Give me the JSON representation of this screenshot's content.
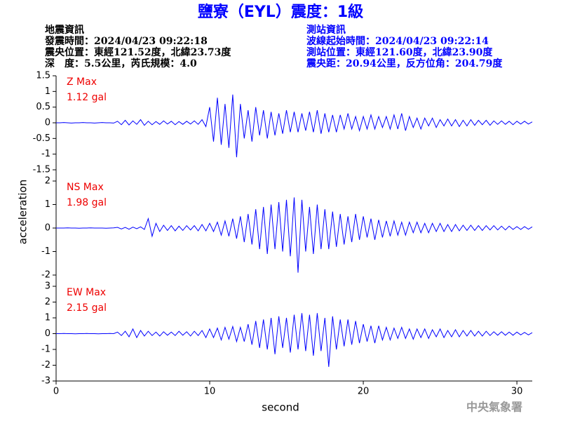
{
  "chart_data": {
    "type": "line",
    "title": "鹽寮（EYL）震度：1級",
    "info_left": [
      "地震資訊",
      "發震時間：2024/04/23 09:22:18",
      "震央位置：東經121.52度，北緯23.73度",
      "深　度：5.5公里，芮氏規模：4.0"
    ],
    "info_right": [
      "測站資訊",
      "波線起始時間：2024/04/23 09:22:14",
      "測站位置：東經121.60度，北緯23.90度",
      "震央距：20.94公里，反方位角：204.79度"
    ],
    "x_label": "second",
    "y_label": "acceleration",
    "watermark": "中央氣象署",
    "title_color": "#0000ff",
    "label_color": "#ee0000",
    "xlim": [
      0,
      31
    ],
    "xticks": [
      0,
      10,
      20,
      30
    ],
    "x": [
      0,
      0.25,
      0.5,
      0.75,
      1,
      1.25,
      1.5,
      1.75,
      2,
      2.25,
      2.5,
      2.75,
      3,
      3.25,
      3.5,
      3.75,
      4,
      4.25,
      4.5,
      4.75,
      5,
      5.25,
      5.5,
      5.75,
      6,
      6.25,
      6.5,
      6.75,
      7,
      7.25,
      7.5,
      7.75,
      8,
      8.25,
      8.5,
      8.75,
      9,
      9.25,
      9.5,
      9.75,
      10,
      10.25,
      10.5,
      10.75,
      11,
      11.25,
      11.5,
      11.75,
      12,
      12.25,
      12.5,
      12.75,
      13,
      13.25,
      13.5,
      13.75,
      14,
      14.25,
      14.5,
      14.75,
      15,
      15.25,
      15.5,
      15.75,
      16,
      16.25,
      16.5,
      16.75,
      17,
      17.25,
      17.5,
      17.75,
      18,
      18.25,
      18.5,
      18.75,
      19,
      19.25,
      19.5,
      19.75,
      20,
      20.25,
      20.5,
      20.75,
      21,
      21.25,
      21.5,
      21.75,
      22,
      22.25,
      22.5,
      22.75,
      23,
      23.25,
      23.5,
      23.75,
      24,
      24.25,
      24.5,
      24.75,
      25,
      25.25,
      25.5,
      25.75,
      26,
      26.25,
      26.5,
      26.75,
      27,
      27.25,
      27.5,
      27.75,
      28,
      28.25,
      28.5,
      28.75,
      29,
      29.25,
      29.5,
      29.75,
      30,
      30.25,
      30.5,
      30.75,
      31
    ],
    "series": [
      {
        "name": "Z Max",
        "max_label": "1.12 gal",
        "color": "#0000ff",
        "ylim": [
          -1.5,
          1.5
        ],
        "yticks": [
          -1.5,
          -1,
          -0.5,
          0,
          0.5,
          1,
          1.5
        ],
        "values": [
          0,
          0,
          0.01,
          0,
          -0.01,
          0,
          0,
          0.01,
          0,
          0,
          -0.01,
          0,
          0.01,
          0,
          0,
          -0.01,
          0.05,
          -0.06,
          0.08,
          -0.07,
          0.06,
          -0.05,
          0.1,
          -0.08,
          0.05,
          -0.06,
          0.04,
          -0.05,
          0.06,
          -0.04,
          0.05,
          -0.06,
          0.04,
          -0.05,
          0.05,
          -0.04,
          0.06,
          -0.05,
          0.1,
          -0.12,
          0.5,
          -0.6,
          0.8,
          -0.7,
          0.6,
          -0.8,
          0.9,
          -1.1,
          0.6,
          -0.5,
          0.4,
          -0.6,
          0.5,
          -0.4,
          0.4,
          -0.5,
          0.35,
          -0.4,
          0.3,
          -0.35,
          0.4,
          -0.3,
          0.35,
          -0.3,
          0.3,
          -0.25,
          0.35,
          -0.3,
          0.4,
          -0.35,
          0.3,
          -0.3,
          0.25,
          -0.3,
          0.25,
          -0.2,
          0.3,
          -0.2,
          0.2,
          -0.25,
          0.2,
          -0.2,
          0.25,
          -0.2,
          0.2,
          -0.15,
          0.2,
          -0.2,
          0.25,
          -0.2,
          0.3,
          -0.25,
          0.2,
          -0.15,
          0.15,
          -0.2,
          0.15,
          -0.1,
          0.15,
          -0.15,
          0.1,
          -0.1,
          0.12,
          -0.1,
          0.1,
          -0.12,
          0.08,
          -0.1,
          0.1,
          -0.08,
          0.08,
          -0.06,
          0.08,
          -0.08,
          0.06,
          -0.05,
          0.06,
          -0.05,
          0.05,
          -0.06,
          0.05,
          -0.04,
          0.05,
          -0.04,
          0.03
        ]
      },
      {
        "name": "NS Max",
        "max_label": "1.98 gal",
        "color": "#0000ff",
        "ylim": [
          -2,
          2
        ],
        "yticks": [
          -2,
          -1,
          0,
          1,
          2
        ],
        "values": [
          0,
          0,
          0,
          0.01,
          0,
          0,
          -0.01,
          0,
          0,
          0.01,
          0,
          0,
          0,
          -0.01,
          0,
          0.01,
          0.03,
          -0.04,
          0.03,
          -0.05,
          0.04,
          -0.03,
          0.05,
          -0.06,
          0.4,
          -0.35,
          0.2,
          -0.15,
          0.12,
          -0.1,
          0.1,
          -0.12,
          0.08,
          -0.1,
          0.1,
          -0.08,
          0.1,
          -0.12,
          0.15,
          -0.12,
          0.2,
          -0.15,
          0.25,
          -0.3,
          0.3,
          -0.35,
          0.4,
          -0.45,
          0.5,
          -0.6,
          0.6,
          -0.7,
          0.8,
          -0.9,
          0.9,
          -1.1,
          1.0,
          -0.9,
          1.1,
          -1.0,
          1.2,
          -1.2,
          1.3,
          -1.9,
          1.2,
          -1.0,
          0.9,
          -1.1,
          1.0,
          -0.9,
          0.8,
          -0.9,
          0.7,
          -0.8,
          0.6,
          -0.7,
          0.5,
          -0.6,
          0.6,
          -0.5,
          0.5,
          -0.4,
          0.4,
          -0.5,
          0.35,
          -0.4,
          0.3,
          -0.35,
          0.3,
          -0.3,
          0.25,
          -0.3,
          0.25,
          -0.2,
          0.25,
          -0.2,
          0.2,
          -0.2,
          0.2,
          -0.15,
          0.2,
          -0.15,
          0.15,
          -0.15,
          0.15,
          -0.12,
          0.12,
          -0.1,
          0.12,
          -0.1,
          0.1,
          -0.1,
          0.1,
          -0.08,
          0.1,
          -0.08,
          0.08,
          -0.08,
          0.08,
          -0.06,
          0.06,
          -0.06,
          0.06,
          -0.05,
          0.05
        ]
      },
      {
        "name": "EW Max",
        "max_label": "2.15 gal",
        "color": "#0000ff",
        "ylim": [
          -3,
          3
        ],
        "yticks": [
          -3,
          -2,
          -1,
          0,
          1,
          2,
          3
        ],
        "values": [
          0,
          0,
          0.01,
          0,
          0,
          -0.01,
          0,
          0,
          0.01,
          0,
          0,
          -0.01,
          0,
          0,
          0.01,
          0,
          0.1,
          -0.12,
          0.15,
          -0.2,
          0.3,
          -0.25,
          0.2,
          -0.15,
          0.15,
          -0.12,
          0.1,
          -0.15,
          0.12,
          -0.1,
          0.1,
          -0.12,
          0.15,
          -0.1,
          0.12,
          -0.15,
          0.15,
          -0.12,
          0.2,
          -0.25,
          0.3,
          -0.25,
          0.35,
          -0.4,
          0.4,
          -0.35,
          0.45,
          -0.5,
          0.4,
          -0.5,
          0.6,
          -0.7,
          0.8,
          -0.9,
          0.9,
          -1.0,
          1.0,
          -1.3,
          1.1,
          -0.9,
          1.0,
          -1.2,
          1.2,
          -1.0,
          1.3,
          -1.1,
          1.2,
          -1.4,
          1.3,
          -1.1,
          1.0,
          -2.1,
          1.1,
          -1.0,
          0.9,
          -0.8,
          0.9,
          -0.7,
          0.8,
          -0.6,
          0.6,
          -0.5,
          0.5,
          -0.6,
          0.5,
          -0.4,
          0.4,
          -0.4,
          0.35,
          -0.3,
          0.4,
          -0.3,
          0.3,
          -0.35,
          0.3,
          -0.25,
          0.3,
          -0.3,
          0.25,
          -0.2,
          0.3,
          -0.25,
          0.2,
          -0.2,
          0.25,
          -0.2,
          0.2,
          -0.15,
          0.2,
          -0.15,
          0.15,
          -0.15,
          0.15,
          -0.12,
          0.12,
          -0.1,
          0.12,
          -0.1,
          0.1,
          -0.1,
          0.1,
          -0.08,
          0.08,
          -0.08,
          0.06
        ]
      }
    ]
  }
}
